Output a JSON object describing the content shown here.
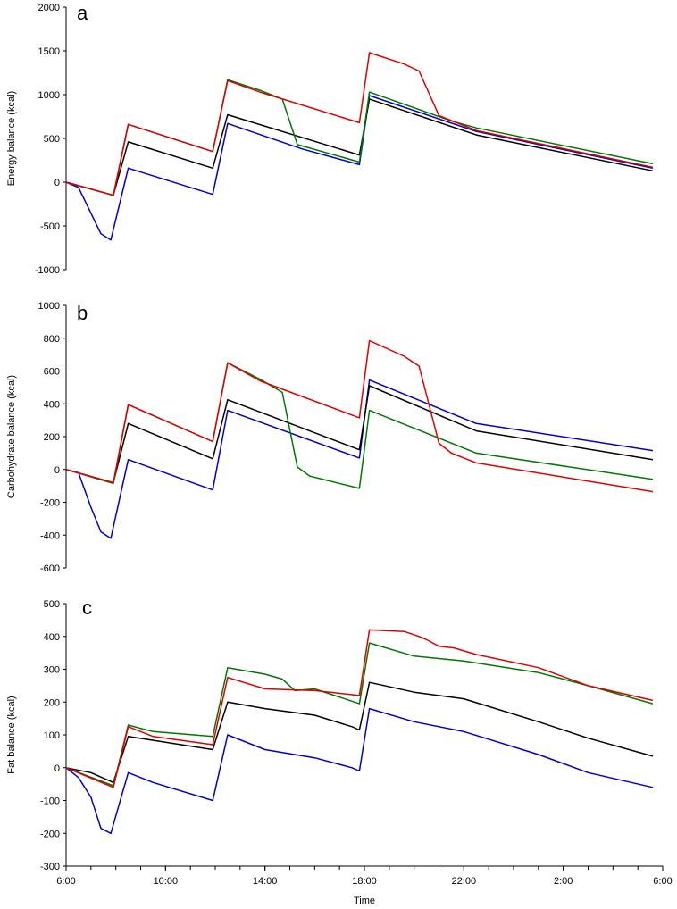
{
  "chart_data": [
    {
      "type": "line",
      "panel_label": "a",
      "ylabel": "Energy balance (kcal)",
      "ylim": [
        -1000,
        2000
      ],
      "yticks": [
        -1000,
        -500,
        0,
        500,
        1000,
        1500,
        2000
      ],
      "ytick_labels": [
        "-1000",
        "-500",
        "0",
        "500",
        "1000",
        "1500",
        "2000"
      ],
      "xlim": [
        6,
        30
      ],
      "series": [
        {
          "name": "blue",
          "color": "#0000cc",
          "x": [
            6,
            6.5,
            7.4,
            7.8,
            8.5,
            11.9,
            12.5,
            15.5,
            17.8,
            18.2,
            22.5,
            29.6
          ],
          "y": [
            0,
            -60,
            -590,
            -660,
            160,
            -140,
            670,
            380,
            200,
            990,
            580,
            160
          ]
        },
        {
          "name": "black",
          "color": "#000000",
          "x": [
            6,
            7.9,
            8.5,
            11.9,
            12.5,
            17.8,
            18.2,
            22.5,
            29.6
          ],
          "y": [
            0,
            -150,
            460,
            160,
            770,
            310,
            950,
            540,
            130
          ]
        },
        {
          "name": "green",
          "color": "#007700",
          "x": [
            6,
            7.9,
            8.5,
            11.9,
            12.5,
            13.8,
            14.7,
            15.3,
            17.8,
            18.2,
            21.6,
            22.5,
            29.6
          ],
          "y": [
            0,
            -150,
            660,
            350,
            1170,
            1050,
            950,
            430,
            230,
            1030,
            690,
            620,
            210
          ]
        },
        {
          "name": "red",
          "color": "#dd0000",
          "x": [
            6,
            7.9,
            8.5,
            11.9,
            12.5,
            13.8,
            17.8,
            18.2,
            19.6,
            20.2,
            21.0,
            22.5,
            29.6
          ],
          "y": [
            0,
            -150,
            660,
            350,
            1160,
            1030,
            680,
            1480,
            1350,
            1270,
            760,
            590,
            170
          ]
        }
      ]
    },
    {
      "type": "line",
      "panel_label": "b",
      "ylabel": "Carbohydrate balance (kcal)",
      "ylim": [
        -600,
        1000
      ],
      "yticks": [
        -600,
        -400,
        -200,
        0,
        200,
        400,
        600,
        800,
        1000
      ],
      "ytick_labels": [
        "-600",
        "-400",
        "-200",
        "0",
        "200",
        "400",
        "600",
        "800",
        "1000"
      ],
      "xlim": [
        6,
        30
      ],
      "series": [
        {
          "name": "blue",
          "color": "#0000cc",
          "x": [
            6,
            6.5,
            7.0,
            7.4,
            7.8,
            8.5,
            11.9,
            12.5,
            17.8,
            18.2,
            22.5,
            29.6
          ],
          "y": [
            0,
            -20,
            -230,
            -380,
            -420,
            60,
            -125,
            360,
            70,
            545,
            280,
            115
          ]
        },
        {
          "name": "black",
          "color": "#000000",
          "x": [
            6,
            7.9,
            8.5,
            11.9,
            12.5,
            17.8,
            18.2,
            22.5,
            29.6
          ],
          "y": [
            0,
            -80,
            280,
            65,
            425,
            120,
            510,
            235,
            60
          ]
        },
        {
          "name": "green",
          "color": "#007700",
          "x": [
            6,
            7.9,
            8.5,
            11.9,
            12.5,
            13.8,
            14.7,
            15.3,
            15.8,
            17.8,
            18.2,
            22.5,
            29.6
          ],
          "y": [
            0,
            -85,
            395,
            170,
            650,
            550,
            470,
            15,
            -40,
            -115,
            360,
            100,
            -60
          ]
        },
        {
          "name": "red",
          "color": "#dd0000",
          "x": [
            6,
            7.9,
            8.5,
            11.9,
            12.5,
            13.8,
            17.8,
            18.2,
            19.6,
            20.2,
            21.0,
            21.5,
            22.5,
            29.6
          ],
          "y": [
            0,
            -80,
            395,
            170,
            650,
            540,
            315,
            785,
            690,
            630,
            160,
            100,
            40,
            -135
          ]
        }
      ]
    },
    {
      "type": "line",
      "panel_label": "c",
      "ylabel": "Fat balance (kcal)",
      "xlabel": "Time",
      "ylim": [
        -300,
        500
      ],
      "yticks": [
        -300,
        -200,
        -100,
        0,
        100,
        200,
        300,
        400,
        500
      ],
      "ytick_labels": [
        "-300",
        "-200",
        "-100",
        "0",
        "100",
        "200",
        "300",
        "400",
        "500"
      ],
      "xlim": [
        6,
        30
      ],
      "xticks": [
        6,
        10,
        14,
        18,
        22,
        26,
        30
      ],
      "xtick_labels": [
        "6:00",
        "10:00",
        "14:00",
        "18:00",
        "22:00",
        "2:00",
        "6:00"
      ],
      "series": [
        {
          "name": "blue",
          "color": "#0000cc",
          "x": [
            6,
            6.5,
            7.0,
            7.4,
            7.8,
            8.5,
            9.5,
            11.9,
            12.5,
            14.0,
            16.0,
            17.5,
            17.8,
            18.2,
            20.0,
            22.0,
            25.0,
            27.0,
            29.6
          ],
          "y": [
            0,
            -30,
            -90,
            -185,
            -200,
            -15,
            -45,
            -100,
            100,
            55,
            30,
            0,
            -10,
            180,
            140,
            110,
            40,
            -15,
            -60
          ]
        },
        {
          "name": "black",
          "color": "#000000",
          "x": [
            6,
            7.0,
            7.9,
            8.5,
            11.9,
            12.5,
            14.0,
            16.0,
            17.5,
            17.8,
            18.2,
            20.0,
            22.0,
            25.0,
            27.0,
            29.6
          ],
          "y": [
            0,
            -15,
            -45,
            95,
            55,
            200,
            180,
            160,
            125,
            115,
            260,
            230,
            210,
            140,
            90,
            35
          ]
        },
        {
          "name": "green",
          "color": "#007700",
          "x": [
            6,
            7.9,
            8.5,
            9.5,
            11.9,
            12.5,
            14.0,
            14.7,
            15.2,
            16.0,
            17.8,
            18.2,
            20.0,
            22.0,
            25.0,
            27.0,
            29.6
          ],
          "y": [
            0,
            -55,
            130,
            110,
            95,
            305,
            285,
            270,
            235,
            240,
            195,
            380,
            340,
            325,
            290,
            250,
            195
          ]
        },
        {
          "name": "red",
          "color": "#dd0000",
          "x": [
            6,
            7.9,
            8.5,
            9.5,
            11.9,
            12.5,
            14.0,
            16.0,
            17.8,
            18.2,
            19.6,
            20.2,
            20.5,
            21.0,
            21.6,
            22.5,
            25.0,
            27.0,
            29.6
          ],
          "y": [
            0,
            -60,
            125,
            95,
            70,
            275,
            240,
            235,
            220,
            420,
            415,
            400,
            390,
            370,
            365,
            345,
            305,
            250,
            205
          ]
        }
      ]
    }
  ]
}
